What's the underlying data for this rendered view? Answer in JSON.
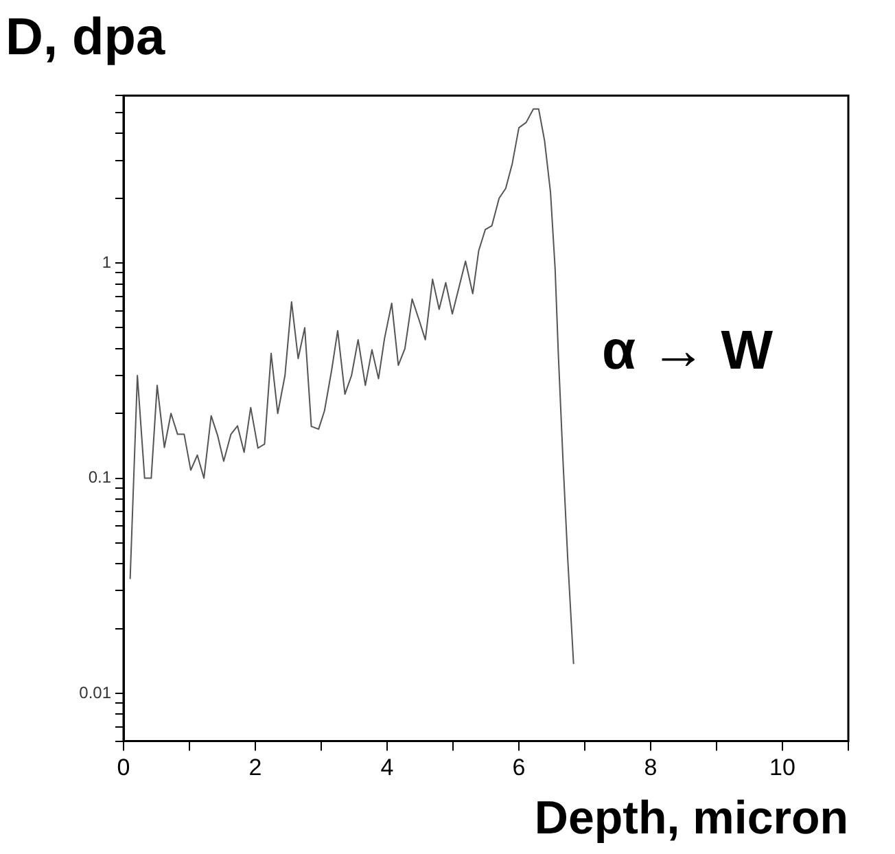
{
  "chart_data": {
    "type": "line",
    "title": "D, dpa",
    "xlabel": "Depth, micron",
    "annotations": [
      "α → W"
    ],
    "series": [
      {
        "color": "#555555",
        "x": [
          0.1,
          0.21,
          0.32,
          0.42,
          0.51,
          0.62,
          0.72,
          0.82,
          0.92,
          1.02,
          1.12,
          1.22,
          1.33,
          1.43,
          1.52,
          1.63,
          1.73,
          1.83,
          1.93,
          2.04,
          2.14,
          2.24,
          2.34,
          2.45,
          2.55,
          2.65,
          2.75,
          2.85,
          2.96,
          3.05,
          3.16,
          3.25,
          3.36,
          3.46,
          3.56,
          3.67,
          3.77,
          3.87,
          3.96,
          4.07,
          4.17,
          4.27,
          4.38,
          4.48,
          4.58,
          4.69,
          4.79,
          4.89,
          4.99,
          5.19,
          5.3,
          5.39,
          5.49,
          5.59,
          5.7,
          5.8,
          5.9,
          6.0,
          6.11,
          6.22,
          6.3,
          6.39,
          6.48,
          6.55,
          6.6,
          6.67,
          6.74,
          6.83
        ],
        "values": [
          0.034,
          0.3,
          0.1,
          0.1,
          0.27,
          0.139,
          0.2,
          0.16,
          0.16,
          0.109,
          0.128,
          0.1,
          0.195,
          0.157,
          0.12,
          0.16,
          0.175,
          0.132,
          0.213,
          0.138,
          0.144,
          0.38,
          0.2,
          0.3,
          0.66,
          0.36,
          0.5,
          0.174,
          0.169,
          0.206,
          0.32,
          0.485,
          0.246,
          0.3,
          0.44,
          0.27,
          0.395,
          0.29,
          0.445,
          0.65,
          0.335,
          0.4,
          0.68,
          0.55,
          0.44,
          0.84,
          0.61,
          0.81,
          0.58,
          1.02,
          0.72,
          1.14,
          1.43,
          1.49,
          2.0,
          2.22,
          2.9,
          4.25,
          4.5,
          5.2,
          5.2,
          3.7,
          2.13,
          0.94,
          0.37,
          0.12,
          0.043,
          0.0137
        ]
      }
    ],
    "log": "y",
    "marker": "none",
    "line_style": "solid",
    "legend": false,
    "grid": false,
    "xlim": [
      0,
      11
    ],
    "xticks": [
      0,
      {
        "value": 1,
        "label": null
      },
      2,
      {
        "value": 3,
        "label": null
      },
      4,
      {
        "value": 5,
        "label": null
      },
      6,
      {
        "value": 7,
        "label": null
      },
      8,
      {
        "value": 9,
        "label": null
      },
      10,
      {
        "value": 11,
        "label": null
      }
    ],
    "ylim": [
      0.006,
      6
    ],
    "yticks": [
      {
        "value": 0.006,
        "label": null
      },
      {
        "value": 0.007,
        "label": null
      },
      {
        "value": 0.008,
        "label": null
      },
      {
        "value": 0.009,
        "label": null
      },
      0.01,
      {
        "value": 0.02,
        "label": null
      },
      {
        "value": 0.03,
        "label": null
      },
      {
        "value": 0.04,
        "label": null
      },
      {
        "value": 0.05,
        "label": null
      },
      {
        "value": 0.06,
        "label": null
      },
      {
        "value": 0.07,
        "label": null
      },
      {
        "value": 0.08,
        "label": null
      },
      {
        "value": 0.09,
        "label": null
      },
      0.1,
      {
        "value": 0.2,
        "label": null
      },
      {
        "value": 0.3,
        "label": null
      },
      {
        "value": 0.4,
        "label": null
      },
      {
        "value": 0.5,
        "label": null
      },
      {
        "value": 0.6,
        "label": null
      },
      {
        "value": 0.7,
        "label": null
      },
      {
        "value": 0.8,
        "label": null
      },
      {
        "value": 0.9,
        "label": null
      },
      1,
      {
        "value": 2,
        "label": null
      },
      {
        "value": 3,
        "label": null
      },
      {
        "value": 4,
        "label": null
      },
      {
        "value": 5,
        "label": null
      },
      {
        "value": 6,
        "label": null
      }
    ]
  }
}
